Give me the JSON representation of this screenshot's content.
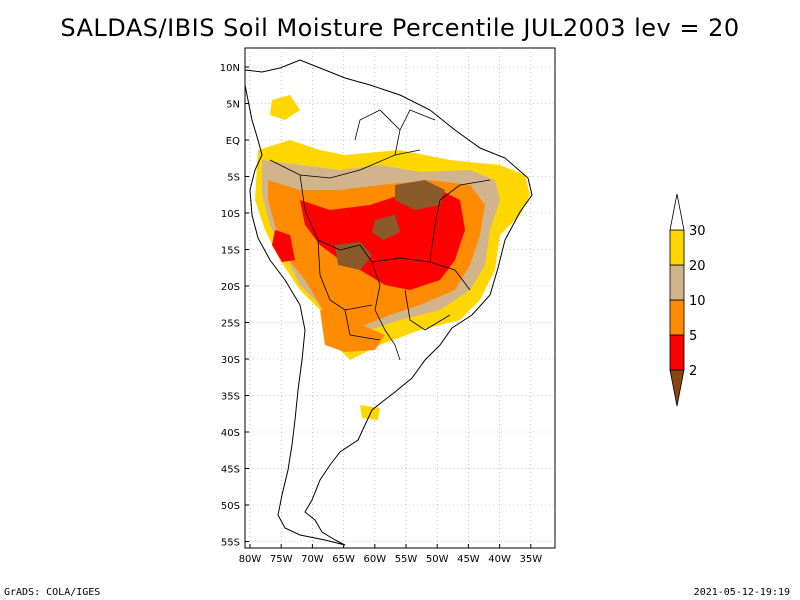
{
  "title": "SALDAS/IBIS Soil Moisture Percentile JUL2003 lev = 20",
  "footer": {
    "left": "GrADS: COLA/IGES",
    "right": "2021-05-12-19:19"
  },
  "lat_ticks": [
    "10N",
    "5N",
    "EQ",
    "5S",
    "10S",
    "15S",
    "20S",
    "25S",
    "30S",
    "35S",
    "40S",
    "45S",
    "50S",
    "55S"
  ],
  "lon_ticks": [
    "80W",
    "75W",
    "70W",
    "65W",
    "60W",
    "55W",
    "50W",
    "45W",
    "40W",
    "35W"
  ],
  "colorbar": {
    "labels": [
      "2",
      "5",
      "10",
      "20",
      "30"
    ],
    "colors": [
      "#8b4513",
      "#ff0000",
      "#ff8c00",
      "#d2b48c",
      "#ffd700",
      "#ffffff"
    ]
  }
}
